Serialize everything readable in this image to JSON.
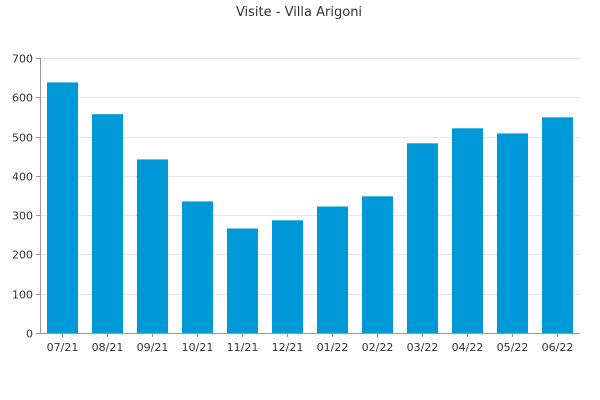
{
  "chart_data": {
    "type": "bar",
    "title": "Visite - Villa Arigoni",
    "xlabel": "",
    "ylabel": "",
    "categories": [
      "07/21",
      "08/21",
      "09/21",
      "10/21",
      "11/21",
      "12/21",
      "01/22",
      "02/22",
      "03/22",
      "04/22",
      "05/22",
      "06/22"
    ],
    "values": [
      638,
      557,
      442,
      335,
      266,
      287,
      322,
      348,
      483,
      521,
      508,
      549
    ],
    "ylim": [
      0,
      700
    ],
    "yticks": [
      0,
      100,
      200,
      300,
      400,
      500,
      600,
      700
    ],
    "grid": true,
    "legend": "none",
    "bar_color": "#0099d8"
  }
}
